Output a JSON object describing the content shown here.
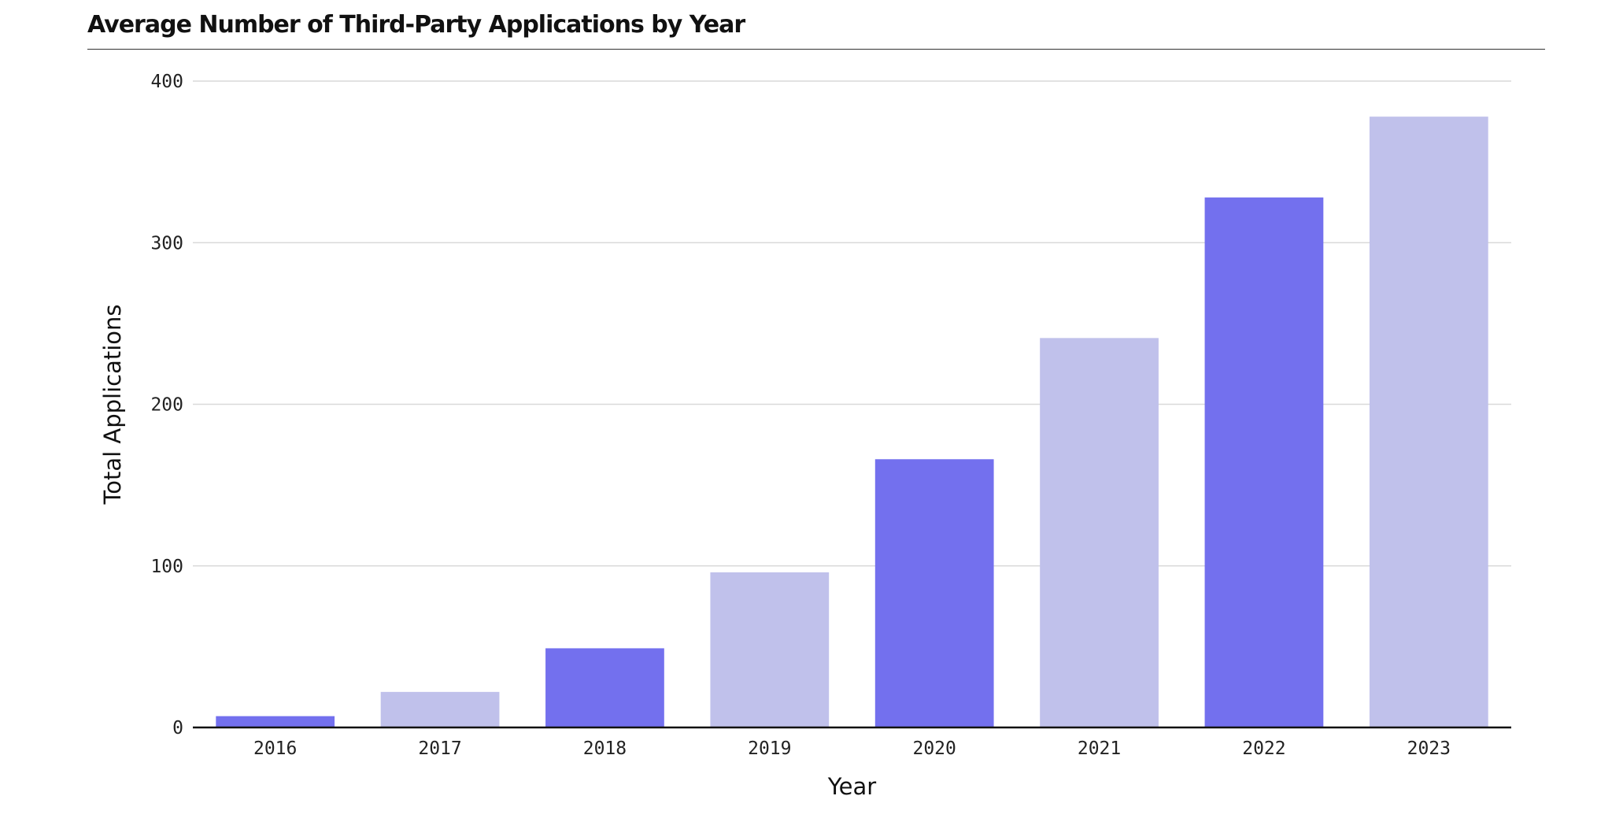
{
  "chart_data": {
    "type": "bar",
    "title": "Average Number of Third-Party Applications by Year",
    "xlabel": "Year",
    "ylabel": "Total Applications",
    "categories": [
      "2016",
      "2017",
      "2018",
      "2019",
      "2020",
      "2021",
      "2022",
      "2023"
    ],
    "values": [
      7,
      22,
      49,
      96,
      166,
      241,
      328,
      378
    ],
    "ylim": [
      0,
      400
    ],
    "yticks": [
      0,
      100,
      200,
      300,
      400
    ],
    "grid": true,
    "legend": "none",
    "colors": {
      "primary": "#7370ee",
      "secondary": "#c0c1eb",
      "gridline": "#d9d9d9",
      "baseline": "#111111"
    }
  }
}
